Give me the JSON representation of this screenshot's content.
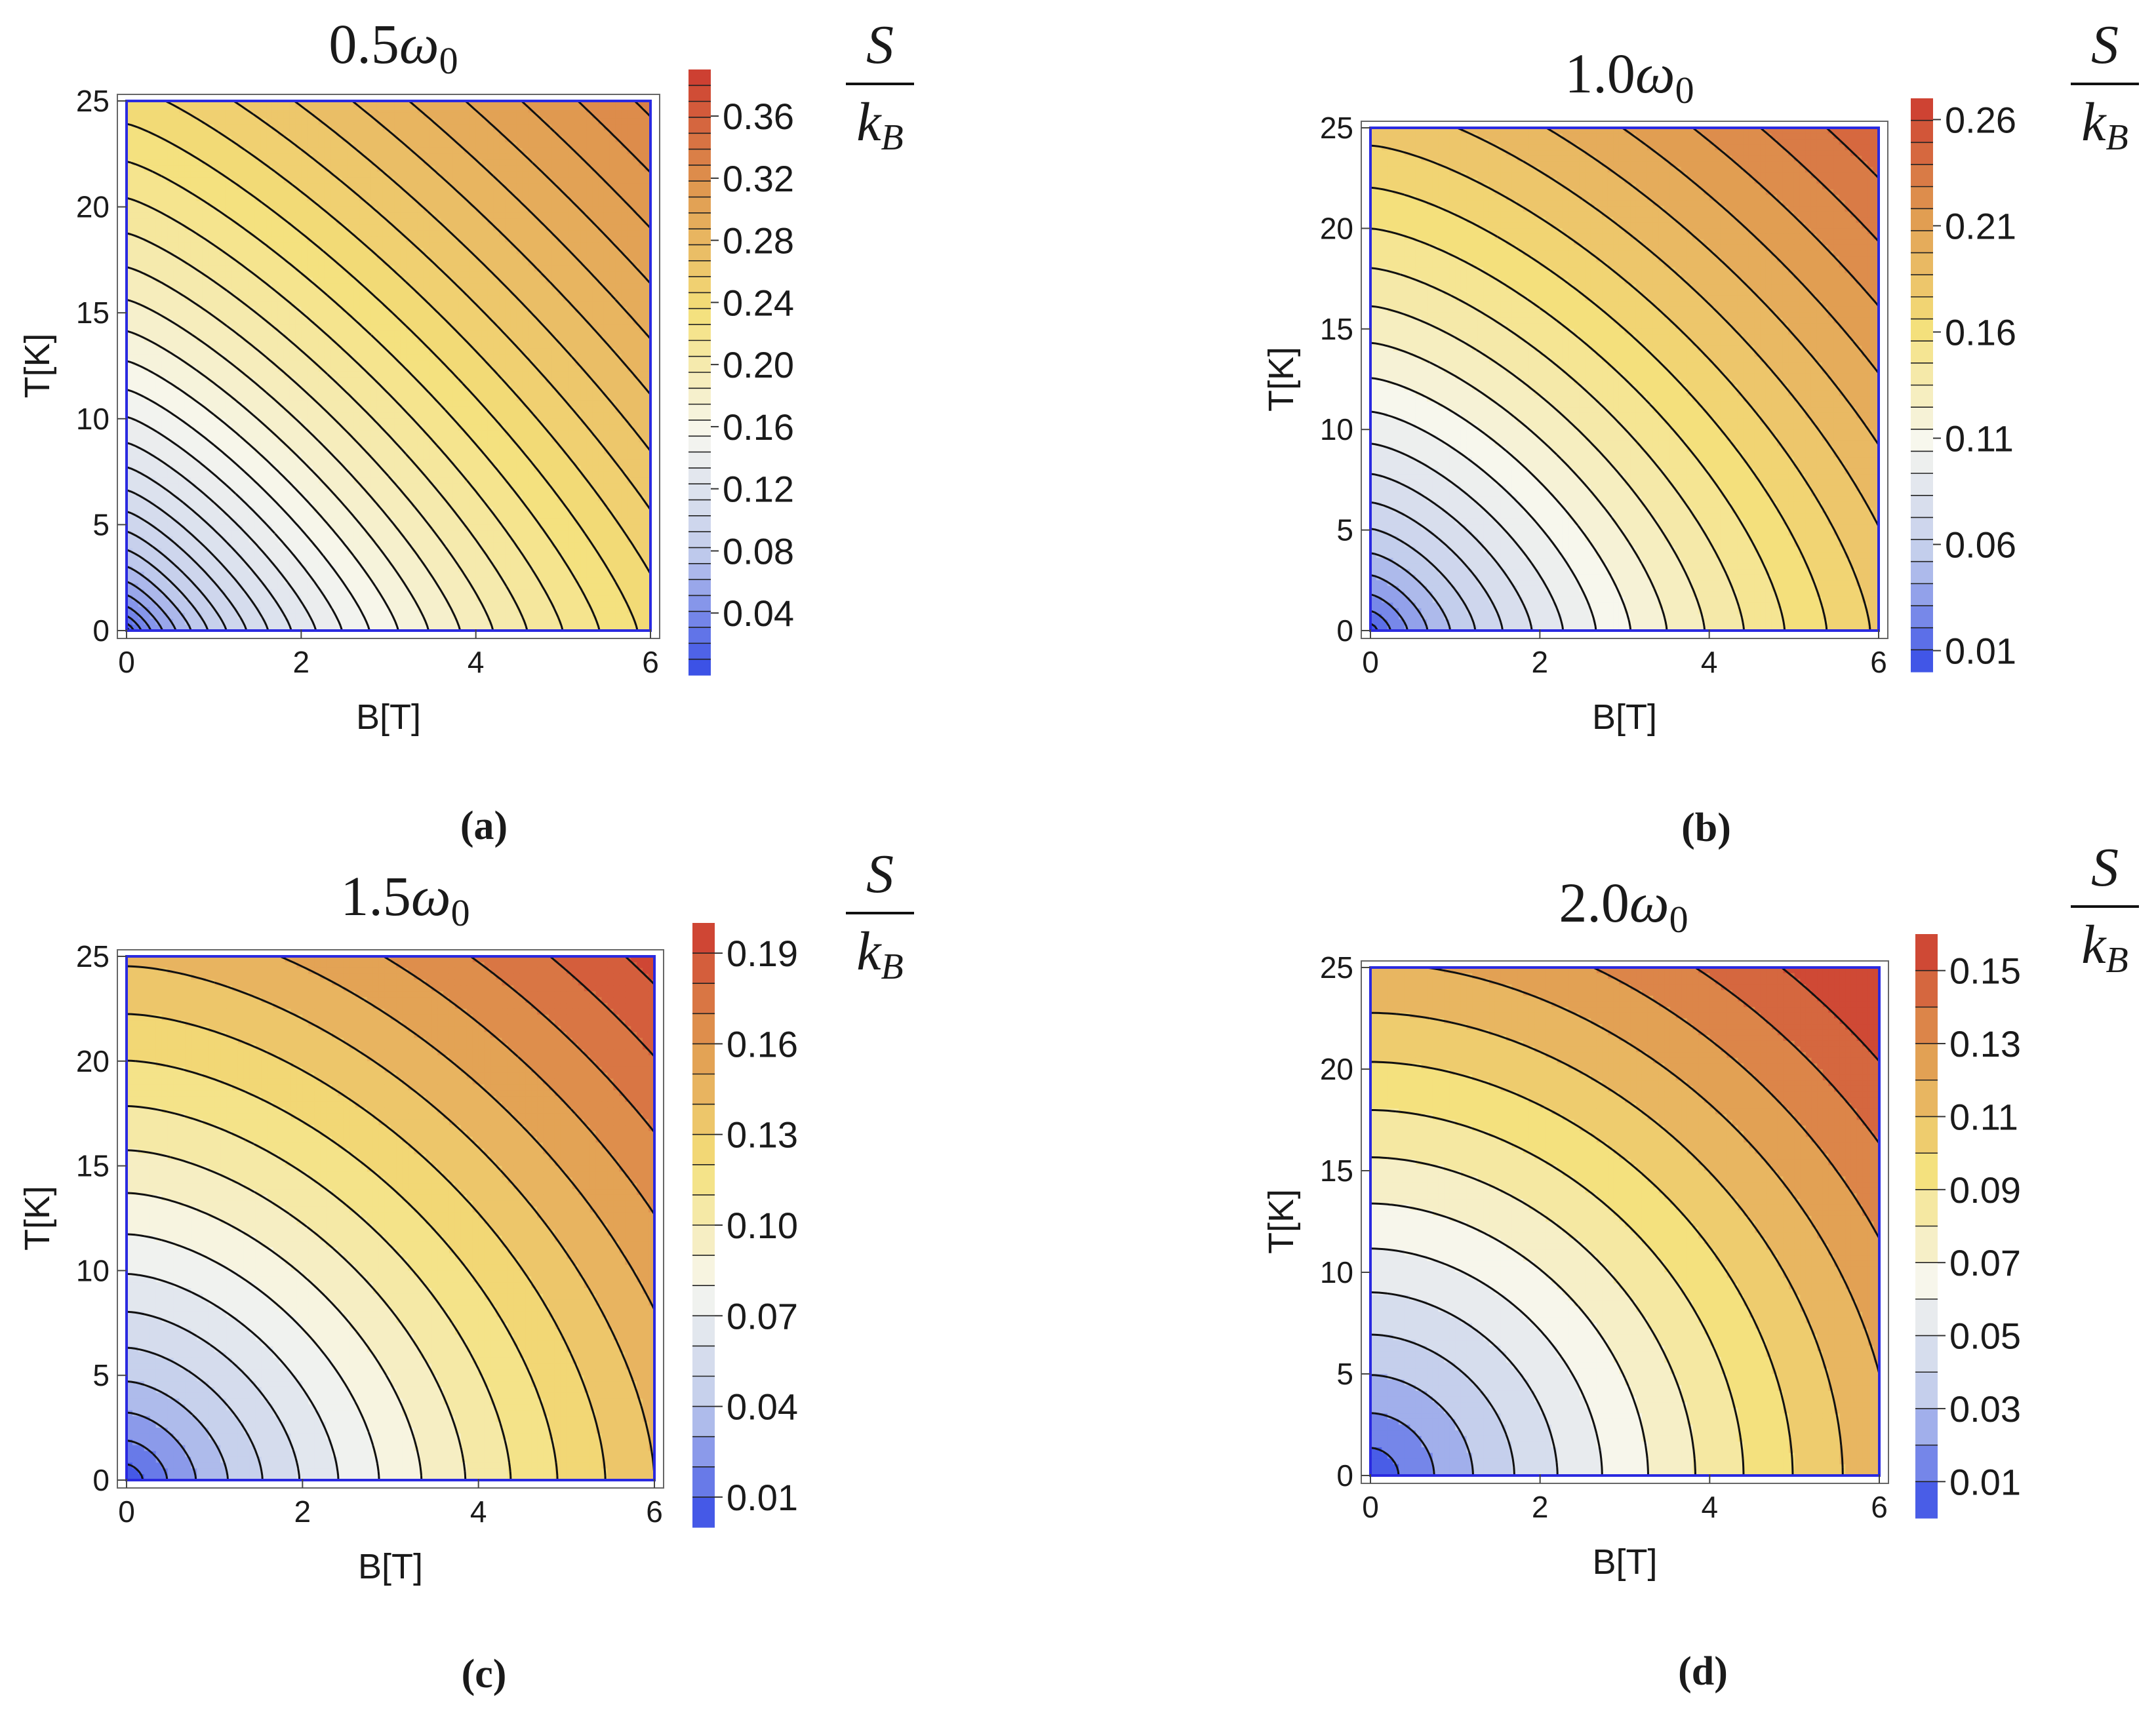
{
  "figure": {
    "panels": [
      {
        "label": "(a)",
        "title_coef": "0.5",
        "title_symbol": "ω",
        "title_sub": "0",
        "xlabel": "B[T]",
        "ylabel": "T[K]",
        "cbar_num": "S",
        "cbar_den": "k",
        "cbar_den_sub": "B",
        "xticks": [
          "0",
          "2",
          "4",
          "6"
        ],
        "yticks": [
          "0",
          "5",
          "10",
          "15",
          "20",
          "25"
        ],
        "cticks": [
          "0.04",
          "0.08",
          "0.12",
          "0.16",
          "0.20",
          "0.24",
          "0.28",
          "0.32",
          "0.36"
        ]
      },
      {
        "label": "(b)",
        "title_coef": "1.0",
        "title_symbol": "ω",
        "title_sub": "0",
        "xlabel": "B[T]",
        "ylabel": "T[K]",
        "cbar_num": "S",
        "cbar_den": "k",
        "cbar_den_sub": "B",
        "xticks": [
          "0",
          "2",
          "4",
          "6"
        ],
        "yticks": [
          "0",
          "5",
          "10",
          "15",
          "20",
          "25"
        ],
        "cticks": [
          "0.01",
          "0.06",
          "0.11",
          "0.16",
          "0.21",
          "0.26"
        ]
      },
      {
        "label": "(c)",
        "title_coef": "1.5",
        "title_symbol": "ω",
        "title_sub": "0",
        "xlabel": "B[T]",
        "ylabel": "T[K]",
        "cbar_num": "S",
        "cbar_den": "k",
        "cbar_den_sub": "B",
        "xticks": [
          "0",
          "2",
          "4",
          "6"
        ],
        "yticks": [
          "0",
          "5",
          "10",
          "15",
          "20",
          "25"
        ],
        "cticks": [
          "0.01",
          "0.04",
          "0.07",
          "0.10",
          "0.13",
          "0.16",
          "0.19"
        ]
      },
      {
        "label": "(d)",
        "title_coef": "2.0",
        "title_symbol": "ω",
        "title_sub": "0",
        "xlabel": "B[T]",
        "ylabel": "T[K]",
        "cbar_num": "S",
        "cbar_den": "k",
        "cbar_den_sub": "B",
        "xticks": [
          "0",
          "2",
          "4",
          "6"
        ],
        "yticks": [
          "0",
          "5",
          "10",
          "15",
          "20",
          "25"
        ],
        "cticks": [
          "0.01",
          "0.03",
          "0.05",
          "0.07",
          "0.09",
          "0.11",
          "0.13",
          "0.15"
        ]
      }
    ]
  },
  "chart_data": [
    {
      "type": "heatmap",
      "panel": "(a)",
      "title": "0.5ω0",
      "xlabel": "B[T]",
      "ylabel": "T[K]",
      "xlim": [
        0,
        6
      ],
      "ylim": [
        0,
        25
      ],
      "colorbar_label": "S/kB",
      "colorbar_range": [
        0.0,
        0.39
      ],
      "colorbar_ticks": [
        0.04,
        0.08,
        0.12,
        0.16,
        0.2,
        0.24,
        0.28,
        0.32,
        0.36
      ],
      "contour_levels": 38,
      "contour_style": "alternating solid/dashed black lines",
      "colormap": [
        "#3349e6",
        "#c0cbec",
        "#f7f7ef",
        "#f4e07a",
        "#e09a50",
        "#cc3a30"
      ],
      "max_value_corner": "top-right",
      "min_value_corner": "bottom-left"
    },
    {
      "type": "heatmap",
      "panel": "(b)",
      "title": "1.0ω0",
      "xlabel": "B[T]",
      "ylabel": "T[K]",
      "xlim": [
        0,
        6
      ],
      "ylim": [
        0,
        25
      ],
      "colorbar_label": "S/kB",
      "colorbar_range": [
        0.0,
        0.27
      ],
      "colorbar_ticks": [
        0.01,
        0.06,
        0.11,
        0.16,
        0.21,
        0.26
      ],
      "contour_levels": 26,
      "contour_style": "alternating solid/dashed black lines",
      "colormap": [
        "#3349e6",
        "#c0cbec",
        "#f7f7ef",
        "#f4e07a",
        "#e09a50",
        "#cc3a30"
      ],
      "max_value_corner": "top-right",
      "min_value_corner": "bottom-left"
    },
    {
      "type": "heatmap",
      "panel": "(c)",
      "title": "1.5ω0",
      "xlabel": "B[T]",
      "ylabel": "T[K]",
      "xlim": [
        0,
        6
      ],
      "ylim": [
        0,
        25
      ],
      "colorbar_label": "S/kB",
      "colorbar_range": [
        0.0,
        0.2
      ],
      "colorbar_ticks": [
        0.01,
        0.04,
        0.07,
        0.1,
        0.13,
        0.16,
        0.19
      ],
      "contour_levels": 20,
      "contour_style": "alternating solid/dashed black lines",
      "colormap": [
        "#3349e6",
        "#c0cbec",
        "#f7f7ef",
        "#f4e07a",
        "#e09a50",
        "#cc3a30"
      ],
      "max_value_corner": "top-right",
      "min_value_corner": "bottom-left"
    },
    {
      "type": "heatmap",
      "panel": "(d)",
      "title": "2.0ω0",
      "xlabel": "B[T]",
      "ylabel": "T[K]",
      "xlim": [
        0,
        6
      ],
      "ylim": [
        0,
        25
      ],
      "colorbar_label": "S/kB",
      "colorbar_range": [
        0.0,
        0.16
      ],
      "colorbar_ticks": [
        0.01,
        0.03,
        0.05,
        0.07,
        0.09,
        0.11,
        0.13,
        0.15
      ],
      "contour_levels": 16,
      "contour_style": "alternating solid/dashed black lines",
      "colormap": [
        "#3349e6",
        "#c0cbec",
        "#f7f7ef",
        "#f4e07a",
        "#e09a50",
        "#cc3a30"
      ],
      "max_value_corner": "top-right",
      "min_value_corner": "bottom-left"
    }
  ]
}
